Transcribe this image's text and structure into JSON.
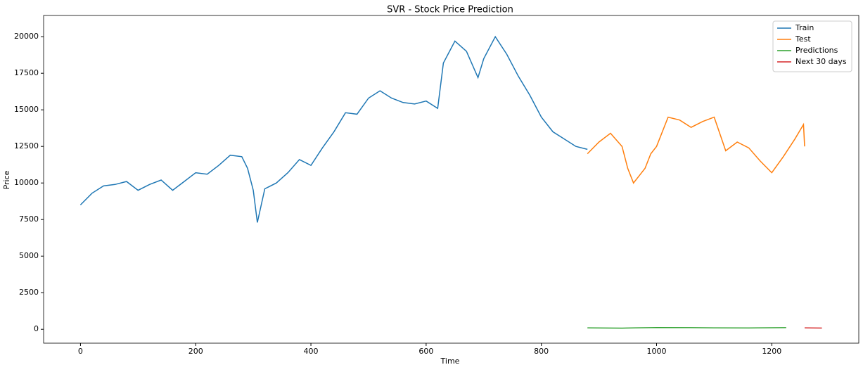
{
  "chart_data": {
    "type": "line",
    "title": "SVR - Stock Price Prediction",
    "x_label": "Time",
    "y_label": "Price",
    "xlim": [
      -64,
      1351
    ],
    "ylim": [
      -950,
      21450
    ],
    "xticks": [
      0,
      200,
      400,
      600,
      800,
      1000,
      1200
    ],
    "yticks": [
      0,
      2500,
      5000,
      7500,
      10000,
      12500,
      15000,
      17500,
      20000
    ],
    "legend": "upper right",
    "series": [
      {
        "name": "Train",
        "color": "#1f77b4",
        "x": [
          0,
          20,
          40,
          60,
          80,
          100,
          120,
          140,
          160,
          180,
          200,
          220,
          240,
          260,
          280,
          290,
          300,
          307,
          320,
          340,
          360,
          380,
          400,
          420,
          440,
          460,
          480,
          500,
          520,
          540,
          560,
          580,
          600,
          620,
          630,
          650,
          670,
          690,
          700,
          720,
          740,
          760,
          780,
          800,
          820,
          840,
          860,
          880
        ],
        "values": [
          8500,
          9300,
          9800,
          9900,
          10100,
          9500,
          9900,
          10200,
          9500,
          10100,
          10700,
          10600,
          11200,
          11900,
          11800,
          11000,
          9500,
          7300,
          9600,
          10000,
          10700,
          11600,
          11200,
          12400,
          13500,
          14800,
          14700,
          15800,
          16300,
          15800,
          15500,
          15400,
          15600,
          15100,
          18200,
          19700,
          19000,
          17200,
          18500,
          20000,
          18800,
          17300,
          16000,
          14500,
          13500,
          13000,
          12500,
          12300
        ]
      },
      {
        "name": "Test",
        "color": "#ff7f0e",
        "x": [
          880,
          900,
          920,
          940,
          950,
          960,
          970,
          980,
          990,
          1000,
          1020,
          1040,
          1060,
          1080,
          1100,
          1120,
          1140,
          1160,
          1180,
          1200,
          1220,
          1240,
          1255,
          1257
        ],
        "values": [
          12000,
          12800,
          13400,
          12500,
          11000,
          10000,
          10500,
          11000,
          12000,
          12500,
          14500,
          14300,
          13800,
          14200,
          14500,
          12200,
          12800,
          12400,
          11500,
          10700,
          11800,
          13000,
          14000,
          12500
        ]
      },
      {
        "name": "Predictions",
        "color": "#2ca02c",
        "x": [
          880,
          940,
          1000,
          1060,
          1100,
          1160,
          1225
        ],
        "values": [
          100,
          80,
          120,
          110,
          100,
          90,
          110
        ]
      },
      {
        "name": "Next 30 days",
        "color": "#d62728",
        "x": [
          1257,
          1287
        ],
        "values": [
          95,
          85
        ]
      }
    ]
  }
}
